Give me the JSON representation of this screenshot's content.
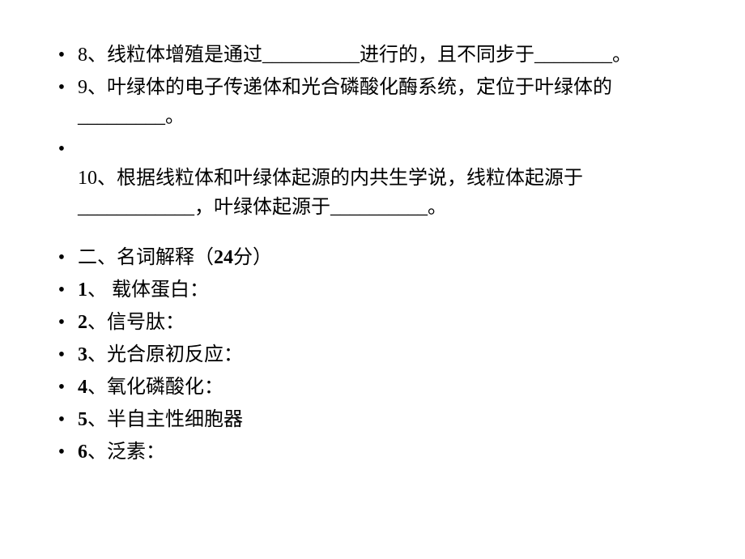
{
  "fill": {
    "q8": "8、线粒体增殖是通过__________进行的，且不同步于________。",
    "q9": "9、叶绿体的电子传递体和光合磷酸化酶系统，定位于叶绿体的_________。",
    "q10_pre": "",
    "q10": "10、根据线粒体和叶绿体起源的内共生学说，线粒体起源于____________，叶绿体起源于__________。"
  },
  "section2_title_prefix": "二、名词解释（",
  "section2_points": "24",
  "section2_title_suffix": "分）",
  "terms": {
    "t1_num": "1",
    "t1_txt": "、 载体蛋白：",
    "t2_num": "2",
    "t2_txt": "、信号肽：",
    "t3_num": "3",
    "t3_txt": "、光合原初反应：",
    "t4_num": "4",
    "t4_txt": "、氧化磷酸化：",
    "t5_num": "5",
    "t5_txt": "、半自主性细胞器",
    "t6_num": "6",
    "t6_txt": "、泛素："
  },
  "bullet": "•"
}
